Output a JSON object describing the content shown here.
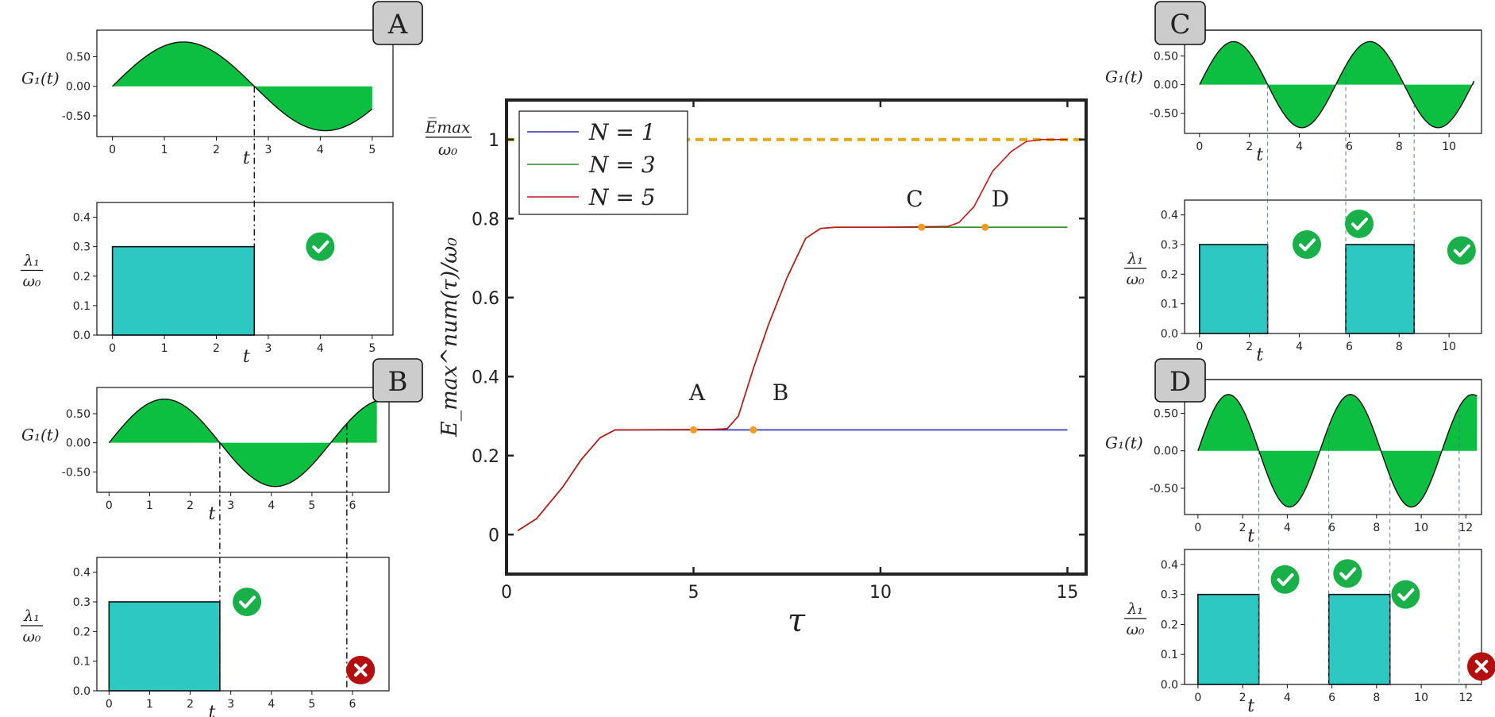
{
  "colors": {
    "fill_g": "#0cbf40",
    "fill_lambda": "#2ec8c3",
    "ok": "#19b04a",
    "bad": "#b30f0f",
    "emax": "#e0a81a",
    "n1": "#2a2abf",
    "n3": "#2a8a2a",
    "n5": "#c01818",
    "marker": "#f59a23",
    "badge_bg": "#cccccc"
  },
  "icons": {
    "ok": "check-circle-icon",
    "bad": "cross-circle-icon"
  },
  "panels": {
    "A": {
      "label": "A",
      "g_ylabel": "G₁(t)",
      "xlabel": "t",
      "g_yticks": [
        "0.50",
        "0.00",
        "-0.50"
      ],
      "g_xticks": [
        "0",
        "1",
        "2",
        "3",
        "4",
        "5"
      ],
      "l_yticks": [
        "0.4",
        "0.3",
        "0.2",
        "0.1",
        "0.0"
      ],
      "l_xticks": [
        "0",
        "1",
        "2",
        "3",
        "4",
        "5"
      ],
      "lambda_num": "λ₁",
      "lambda_den": "ω₀"
    },
    "B": {
      "label": "B",
      "g_ylabel": "G₁(t)",
      "xlabel": "t",
      "g_yticks": [
        "0.50",
        "0.00",
        "-0.50"
      ],
      "g_xticks": [
        "0",
        "1",
        "2",
        "3",
        "4",
        "5",
        "6"
      ],
      "l_yticks": [
        "0.4",
        "0.3",
        "0.2",
        "0.1",
        "0.0"
      ],
      "l_xticks": [
        "0",
        "1",
        "2",
        "3",
        "4",
        "5",
        "6"
      ],
      "lambda_num": "λ₁",
      "lambda_den": "ω₀"
    },
    "C": {
      "label": "C",
      "g_ylabel": "G₁(t)",
      "xlabel": "t",
      "g_yticks": [
        "0.50",
        "0.00",
        "-0.50"
      ],
      "g_xticks": [
        "0",
        "2",
        "4",
        "6",
        "8",
        "10"
      ],
      "l_yticks": [
        "0.4",
        "0.3",
        "0.2",
        "0.1",
        "0.0"
      ],
      "l_xticks": [
        "0",
        "2",
        "4",
        "6",
        "8",
        "10"
      ],
      "lambda_num": "λ₁",
      "lambda_den": "ω₀"
    },
    "D": {
      "label": "D",
      "g_ylabel": "G₁(t)",
      "xlabel": "t",
      "g_yticks": [
        "0.50",
        "0.00",
        "-0.50"
      ],
      "g_xticks": [
        "0",
        "2",
        "4",
        "6",
        "8",
        "10",
        "12"
      ],
      "l_yticks": [
        "0.4",
        "0.3",
        "0.2",
        "0.1",
        "0.0"
      ],
      "l_xticks": [
        "0",
        "2",
        "4",
        "6",
        "8",
        "10",
        "12"
      ],
      "lambda_num": "λ₁",
      "lambda_den": "ω₀"
    }
  },
  "main": {
    "xlabel": "τ",
    "ylabel": "E_max^num(τ)/ω₀",
    "xticks": [
      "0",
      "5",
      "10",
      "15"
    ],
    "yticks": [
      "0",
      "0.2",
      "0.4",
      "0.6",
      "0.8",
      "1"
    ],
    "emax_num": "E̅max",
    "emax_den": "ω₀",
    "legend": [
      "N = 1",
      "N = 3",
      "N = 5"
    ],
    "point_labels": [
      "A",
      "B",
      "C",
      "D"
    ]
  },
  "chart_data": [
    {
      "type": "line",
      "title": "",
      "xlabel": "τ",
      "ylabel": "E_max^num(τ)/ω₀",
      "xlim": [
        0,
        15.5
      ],
      "ylim": [
        -0.1,
        1.1
      ],
      "legend_position": "top-left",
      "grid": false,
      "reference_line": {
        "y": 1.0,
        "label": "E̅max/ω₀",
        "style": "dashed"
      },
      "series": [
        {
          "name": "N = 1",
          "x": [
            0.3,
            0.8,
            1.5,
            2.0,
            2.5,
            2.9,
            4.0,
            6.0,
            10.0,
            15.0
          ],
          "y": [
            0.01,
            0.04,
            0.12,
            0.19,
            0.245,
            0.265,
            0.265,
            0.265,
            0.265,
            0.265
          ]
        },
        {
          "name": "N = 3",
          "x": [
            0.3,
            0.8,
            1.5,
            2.0,
            2.5,
            2.9,
            5.5,
            5.9,
            6.2,
            6.6,
            7.0,
            7.5,
            8.0,
            8.4,
            8.8,
            10.0,
            12.0,
            15.0
          ],
          "y": [
            0.01,
            0.04,
            0.12,
            0.19,
            0.245,
            0.265,
            0.266,
            0.268,
            0.3,
            0.42,
            0.53,
            0.65,
            0.75,
            0.775,
            0.778,
            0.778,
            0.778,
            0.778
          ]
        },
        {
          "name": "N = 5",
          "x": [
            0.3,
            0.8,
            1.5,
            2.0,
            2.5,
            2.9,
            5.5,
            5.9,
            6.2,
            6.6,
            7.0,
            7.5,
            8.0,
            8.4,
            8.8,
            10.0,
            11.8,
            12.1,
            12.5,
            13.0,
            13.5,
            13.9,
            14.3,
            15.0
          ],
          "y": [
            0.01,
            0.04,
            0.12,
            0.19,
            0.245,
            0.265,
            0.266,
            0.268,
            0.3,
            0.42,
            0.53,
            0.65,
            0.75,
            0.775,
            0.778,
            0.778,
            0.78,
            0.79,
            0.83,
            0.92,
            0.97,
            0.995,
            1.0,
            1.0
          ]
        }
      ],
      "markers": [
        {
          "label": "A",
          "x": 5.0,
          "y": 0.265
        },
        {
          "label": "B",
          "x": 6.6,
          "y": 0.265
        },
        {
          "label": "C",
          "x": 11.1,
          "y": 0.778
        },
        {
          "label": "D",
          "x": 12.8,
          "y": 0.778
        }
      ]
    },
    {
      "type": "area",
      "panel": "A",
      "curve": "G1(t) = 0.75·sin(1.15·t)",
      "g_ylim": [
        -0.85,
        0.95
      ],
      "g_xlim": [
        -0.3,
        5.4
      ],
      "t_end": 5.0,
      "switch_times": [
        2.73
      ],
      "lambda_blocks": [
        {
          "start": 0,
          "end": 2.73,
          "value": 0.3
        }
      ],
      "lambda_ylim": [
        0,
        0.45
      ],
      "marks": [
        {
          "type": "ok",
          "t": 4.0,
          "y": 0.3
        }
      ]
    },
    {
      "type": "area",
      "panel": "B",
      "curve": "G1(t) = 0.75·sin(1.15·t)",
      "g_ylim": [
        -0.85,
        0.95
      ],
      "g_xlim": [
        -0.3,
        6.9
      ],
      "t_end": 6.6,
      "switch_times": [
        2.73,
        5.86
      ],
      "lambda_blocks": [
        {
          "start": 0,
          "end": 2.73,
          "value": 0.3
        }
      ],
      "lambda_ylim": [
        0,
        0.45
      ],
      "marks": [
        {
          "type": "ok",
          "t": 3.4,
          "y": 0.3
        },
        {
          "type": "bad",
          "t": 6.2,
          "y": 0.07
        }
      ]
    },
    {
      "type": "area",
      "panel": "C",
      "curve": "G1(t) = 0.75·sin(1.15·t)",
      "g_ylim": [
        -0.85,
        0.95
      ],
      "g_xlim": [
        -0.6,
        11.3
      ],
      "t_end": 11.0,
      "switch_times": [
        2.73,
        5.86,
        8.6
      ],
      "lambda_blocks": [
        {
          "start": 0,
          "end": 2.73,
          "value": 0.3
        },
        {
          "start": 5.86,
          "end": 8.6,
          "value": 0.3
        }
      ],
      "lambda_ylim": [
        0,
        0.45
      ],
      "marks": [
        {
          "type": "ok",
          "t": 4.3,
          "y": 0.3
        },
        {
          "type": "ok",
          "t": 6.4,
          "y": 0.37
        },
        {
          "type": "ok",
          "t": 10.5,
          "y": 0.28
        }
      ]
    },
    {
      "type": "area",
      "panel": "D",
      "curve": "G1(t) = 0.75·sin(1.15·t)",
      "g_ylim": [
        -0.85,
        0.95
      ],
      "g_xlim": [
        -0.6,
        12.7
      ],
      "t_end": 12.5,
      "switch_times": [
        2.73,
        5.86,
        8.6,
        11.7
      ],
      "lambda_blocks": [
        {
          "start": 0,
          "end": 2.73,
          "value": 0.3
        },
        {
          "start": 5.86,
          "end": 8.6,
          "value": 0.3
        }
      ],
      "lambda_ylim": [
        0,
        0.45
      ],
      "marks": [
        {
          "type": "ok",
          "t": 3.9,
          "y": 0.35
        },
        {
          "type": "ok",
          "t": 6.7,
          "y": 0.37
        },
        {
          "type": "ok",
          "t": 9.3,
          "y": 0.3
        },
        {
          "type": "bad",
          "t": 12.7,
          "y": 0.06
        }
      ]
    }
  ]
}
